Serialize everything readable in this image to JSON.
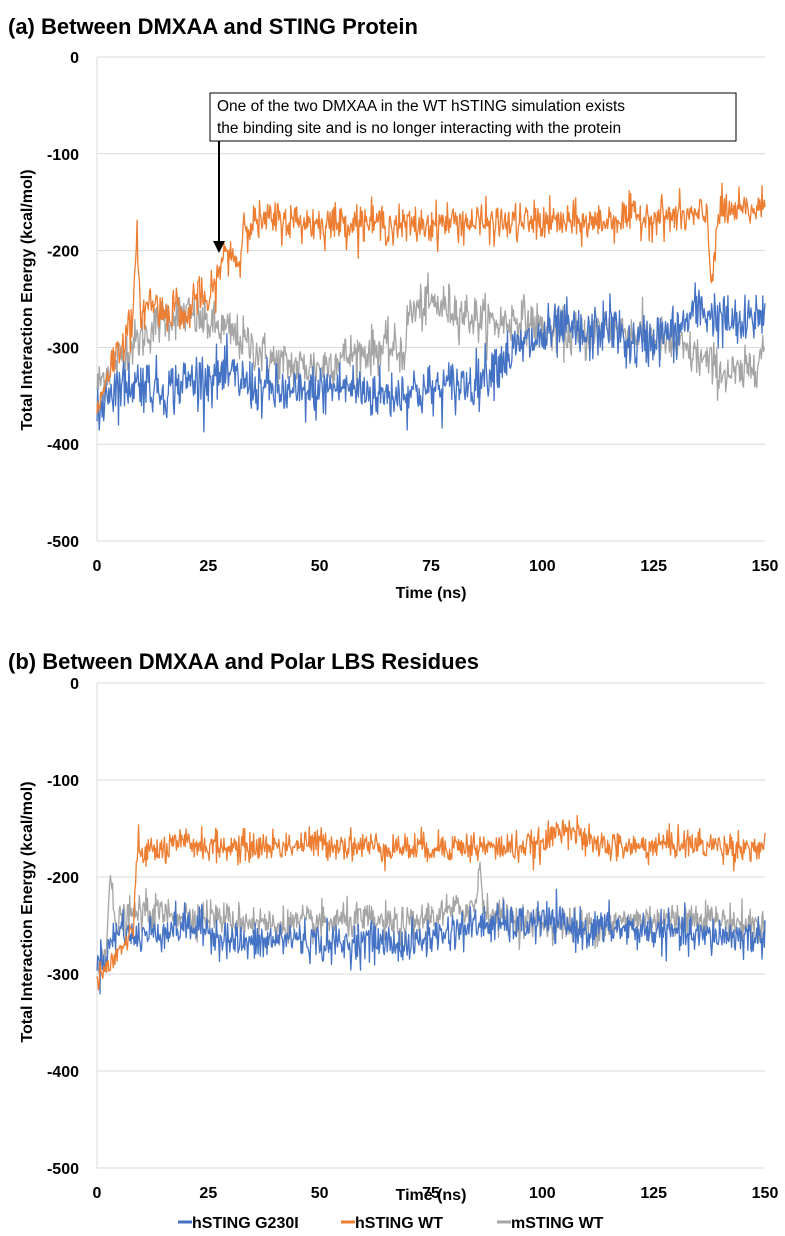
{
  "chart_data": [
    {
      "type": "line",
      "title": "(a) Between DMXAA and STING Protein",
      "xlabel": "Time (ns)",
      "ylabel": "Total Interaction Energy (kcal/mol)",
      "xlim": [
        0,
        150
      ],
      "ylim": [
        -500,
        0
      ],
      "x_ticks": [
        "0",
        "25",
        "50",
        "75",
        "100",
        "125",
        "150"
      ],
      "y_ticks": [
        "0",
        "-100",
        "-200",
        "-300",
        "-400",
        "-500"
      ],
      "grid": "horizontal",
      "annotation": {
        "lines": [
          "One of the two DMXAA in the WT hSTING simulation exists",
          "the binding site and is no longer interacting with the protein"
        ],
        "arrow_target": [
          28,
          -210
        ]
      },
      "series": [
        {
          "name": "hSTING G230I",
          "color": "#4472C4",
          "x": [
            0,
            2,
            5,
            10,
            15,
            20,
            25,
            30,
            35,
            40,
            45,
            50,
            55,
            60,
            65,
            70,
            75,
            80,
            85,
            90,
            95,
            100,
            105,
            110,
            115,
            120,
            125,
            130,
            135,
            140,
            145,
            150
          ],
          "y": [
            -380,
            -345,
            -340,
            -335,
            -345,
            -335,
            -330,
            -330,
            -340,
            -345,
            -350,
            -345,
            -340,
            -345,
            -350,
            -345,
            -345,
            -340,
            -335,
            -315,
            -300,
            -290,
            -280,
            -290,
            -275,
            -300,
            -290,
            -285,
            -260,
            -270,
            -280,
            -260
          ]
        },
        {
          "name": "hSTING WT",
          "color": "#ED7D31",
          "x": [
            0,
            2,
            5,
            8,
            9,
            10,
            12,
            15,
            18,
            20,
            22,
            25,
            27,
            28,
            30,
            32,
            33,
            35,
            40,
            50,
            60,
            70,
            80,
            90,
            100,
            110,
            120,
            130,
            137,
            138,
            139,
            140,
            145,
            150
          ],
          "y": [
            -370,
            -330,
            -300,
            -275,
            -190,
            -270,
            -250,
            -265,
            -255,
            -275,
            -245,
            -255,
            -230,
            -210,
            -200,
            -215,
            -170,
            -172,
            -168,
            -172,
            -170,
            -175,
            -170,
            -172,
            -170,
            -172,
            -165,
            -165,
            -165,
            -235,
            -180,
            -160,
            -160,
            -155
          ]
        },
        {
          "name": "mSTING WT",
          "color": "#A5A5A5",
          "x": [
            0,
            3,
            6,
            10,
            15,
            20,
            25,
            30,
            35,
            40,
            45,
            50,
            55,
            60,
            65,
            69,
            70,
            75,
            80,
            85,
            90,
            95,
            100,
            105,
            110,
            115,
            120,
            125,
            130,
            135,
            140,
            145,
            150
          ],
          "y": [
            -340,
            -320,
            -305,
            -290,
            -270,
            -265,
            -275,
            -285,
            -300,
            -315,
            -320,
            -320,
            -310,
            -305,
            -300,
            -305,
            -265,
            -255,
            -260,
            -270,
            -275,
            -270,
            -280,
            -285,
            -290,
            -275,
            -285,
            -290,
            -300,
            -310,
            -325,
            -330,
            -300
          ]
        }
      ]
    },
    {
      "type": "line",
      "title": "(b) Between DMXAA and Polar LBS Residues",
      "xlabel": "Time (ns)",
      "ylabel": "Total Interaction Energy (kcal/mol)",
      "xlim": [
        0,
        150
      ],
      "ylim": [
        -500,
        0
      ],
      "x_ticks": [
        "0",
        "25",
        "50",
        "75",
        "100",
        "125",
        "150"
      ],
      "y_ticks": [
        "0",
        "-100",
        "-200",
        "-300",
        "-400",
        "-500"
      ],
      "grid": "horizontal",
      "series": [
        {
          "name": "hSTING G230I",
          "color": "#4472C4",
          "x": [
            0,
            2,
            4,
            6,
            8,
            10,
            15,
            20,
            25,
            30,
            35,
            40,
            45,
            50,
            55,
            60,
            65,
            70,
            75,
            80,
            85,
            90,
            95,
            100,
            105,
            110,
            115,
            120,
            125,
            130,
            135,
            140,
            145,
            150
          ],
          "y": [
            -290,
            -280,
            -260,
            -250,
            -265,
            -260,
            -255,
            -250,
            -255,
            -265,
            -270,
            -265,
            -262,
            -268,
            -270,
            -265,
            -268,
            -270,
            -262,
            -255,
            -250,
            -248,
            -250,
            -245,
            -250,
            -255,
            -252,
            -255,
            -255,
            -258,
            -262,
            -260,
            -262,
            -262
          ]
        },
        {
          "name": "hSTING WT",
          "color": "#ED7D31",
          "x": [
            0,
            2,
            4,
            6,
            8,
            9,
            10,
            15,
            20,
            25,
            30,
            40,
            50,
            60,
            70,
            80,
            90,
            100,
            105,
            110,
            120,
            130,
            140,
            150
          ],
          "y": [
            -300,
            -295,
            -285,
            -270,
            -262,
            -175,
            -175,
            -172,
            -165,
            -168,
            -170,
            -168,
            -165,
            -168,
            -170,
            -168,
            -170,
            -168,
            -145,
            -165,
            -170,
            -165,
            -168,
            -170
          ]
        },
        {
          "name": "mSTING WT",
          "color": "#A5A5A5",
          "x": [
            0,
            2,
            3,
            4,
            6,
            8,
            10,
            15,
            20,
            25,
            30,
            35,
            40,
            45,
            50,
            55,
            60,
            65,
            70,
            75,
            80,
            85,
            86,
            87,
            90,
            95,
            100,
            105,
            110,
            115,
            120,
            125,
            130,
            135,
            140,
            145,
            150
          ],
          "y": [
            -290,
            -270,
            -200,
            -250,
            -245,
            -240,
            -235,
            -238,
            -240,
            -240,
            -245,
            -245,
            -250,
            -248,
            -248,
            -245,
            -245,
            -248,
            -250,
            -240,
            -235,
            -230,
            -185,
            -235,
            -240,
            -245,
            -248,
            -250,
            -250,
            -250,
            -245,
            -242,
            -245,
            -240,
            -245,
            -248,
            -252
          ]
        }
      ]
    }
  ]
}
